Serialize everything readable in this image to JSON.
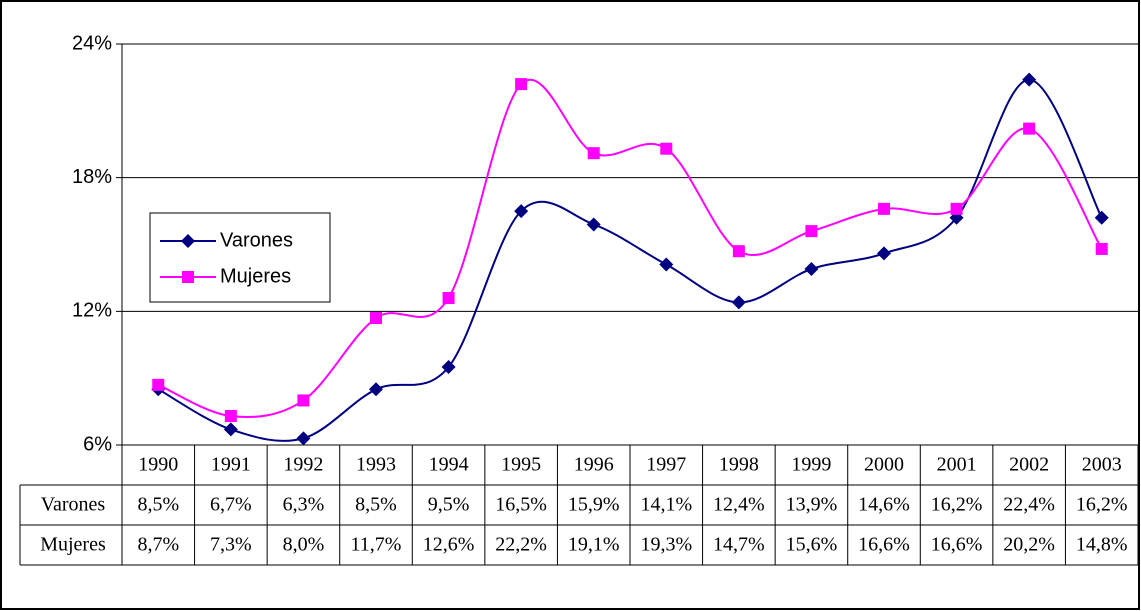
{
  "chart_data": {
    "type": "line",
    "categories": [
      "1990",
      "1991",
      "1992",
      "1993",
      "1994",
      "1995",
      "1996",
      "1997",
      "1998",
      "1999",
      "2000",
      "2001",
      "2002",
      "2003"
    ],
    "series": [
      {
        "name": "Varones",
        "color": "#000080",
        "marker": "diamond",
        "values": [
          8.5,
          6.7,
          6.3,
          8.5,
          9.5,
          16.5,
          15.9,
          14.1,
          12.4,
          13.9,
          14.6,
          16.2,
          22.4,
          16.2
        ],
        "value_labels": [
          "8,5%",
          "6,7%",
          "6,3%",
          "8,5%",
          "9,5%",
          "16,5%",
          "15,9%",
          "14,1%",
          "12,4%",
          "13,9%",
          "14,6%",
          "16,2%",
          "22,4%",
          "16,2%"
        ]
      },
      {
        "name": "Mujeres",
        "color": "#ff00ff",
        "marker": "square",
        "values": [
          8.7,
          7.3,
          8.0,
          11.7,
          12.6,
          22.2,
          19.1,
          19.3,
          14.7,
          15.6,
          16.6,
          16.6,
          20.2,
          14.8
        ],
        "value_labels": [
          "8,7%",
          "7,3%",
          "8,0%",
          "11,7%",
          "12,6%",
          "22,2%",
          "19,1%",
          "19,3%",
          "14,7%",
          "15,6%",
          "16,6%",
          "16,6%",
          "20,2%",
          "14,8%"
        ]
      }
    ],
    "ylim": [
      6,
      24
    ],
    "yticks": [
      {
        "value": 6,
        "label": "6%"
      },
      {
        "value": 12,
        "label": "12%"
      },
      {
        "value": 18,
        "label": "18%"
      },
      {
        "value": 24,
        "label": "24%"
      }
    ],
    "grid": true,
    "smooth": true,
    "legend": "left"
  }
}
